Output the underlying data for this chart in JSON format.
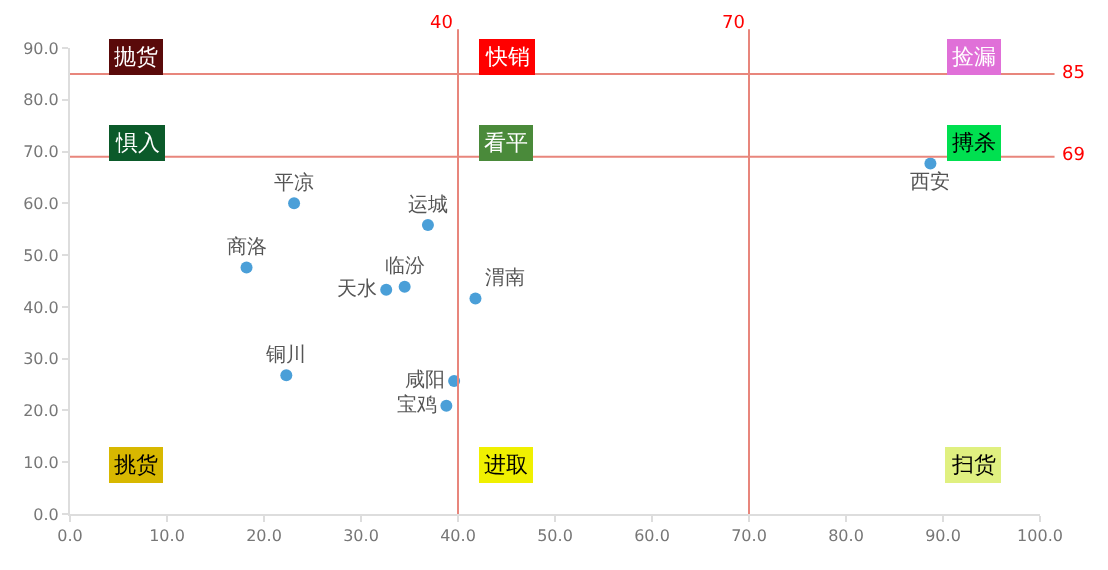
{
  "chart_data": {
    "type": "scatter",
    "annotations": [
      "抛货",
      "快销",
      "捡漏",
      "惧入",
      "看平",
      "搏杀",
      "挑货",
      "进取",
      "扫货"
    ],
    "series": [
      {
        "name": "平凉",
        "color": "#4a9fd8",
        "x": [
          23.1
        ],
        "values": [
          60.0
        ]
      },
      {
        "name": "运城",
        "color": "#4a9fd8",
        "x": [
          36.9
        ],
        "values": [
          55.8
        ]
      },
      {
        "name": "商洛",
        "color": "#4a9fd8",
        "x": [
          18.2
        ],
        "values": [
          47.6
        ]
      },
      {
        "name": "天水",
        "color": "#4a9fd8",
        "x": [
          32.6
        ],
        "values": [
          43.3
        ]
      },
      {
        "name": "临汾",
        "color": "#4a9fd8",
        "x": [
          34.5
        ],
        "values": [
          43.9
        ]
      },
      {
        "name": "渭南",
        "color": "#4a9fd8",
        "x": [
          41.8
        ],
        "values": [
          41.6
        ]
      },
      {
        "name": "铜川",
        "color": "#4a9fd8",
        "x": [
          22.3
        ],
        "values": [
          26.8
        ]
      },
      {
        "name": "咸阳",
        "color": "#4a9fd8",
        "x": [
          39.6
        ],
        "values": [
          25.7
        ]
      },
      {
        "name": "宝鸡",
        "color": "#4a9fd8",
        "x": [
          38.8
        ],
        "values": [
          20.9
        ]
      },
      {
        "name": "西安",
        "color": "#4a9fd8",
        "x": [
          88.7
        ],
        "values": [
          67.7
        ]
      }
    ],
    "xlim": [
      0,
      100
    ],
    "xticks": [
      {
        "value": 0,
        "label": "0.0"
      },
      {
        "value": 10,
        "label": "10.0"
      },
      {
        "value": 20,
        "label": "20.0"
      },
      {
        "value": 30,
        "label": "30.0"
      },
      {
        "value": 40,
        "label": "40.0"
      },
      {
        "value": 50,
        "label": "50.0"
      },
      {
        "value": 60,
        "label": "60.0"
      },
      {
        "value": 70,
        "label": "70.0"
      },
      {
        "value": 80,
        "label": "80.0"
      },
      {
        "value": 90,
        "label": "90.0"
      },
      {
        "value": 100,
        "label": "100.0"
      }
    ],
    "ylim": [
      0,
      90
    ],
    "yticks": [
      {
        "value": 0,
        "label": "0.0"
      },
      {
        "value": 10,
        "label": "10.0"
      },
      {
        "value": 20,
        "label": "20.0"
      },
      {
        "value": 30,
        "label": "30.0"
      },
      {
        "value": 40,
        "label": "40.0"
      },
      {
        "value": 50,
        "label": "50.0"
      },
      {
        "value": 60,
        "label": "60.0"
      },
      {
        "value": 70,
        "label": "70.0"
      },
      {
        "value": 80,
        "label": "80.0"
      },
      {
        "value": 90,
        "label": "90.0"
      }
    ],
    "ref_lines": [
      {
        "axis": "x",
        "value": 40,
        "label": "40",
        "color": "#e8867c"
      },
      {
        "axis": "x",
        "value": 70,
        "label": "70",
        "color": "#e8867c"
      },
      {
        "axis": "y",
        "value": 85,
        "label": "85",
        "color": "#e8867c"
      },
      {
        "axis": "y",
        "value": 69,
        "label": "69",
        "color": "#e8867c"
      }
    ],
    "legend": false,
    "marker": "circle"
  }
}
